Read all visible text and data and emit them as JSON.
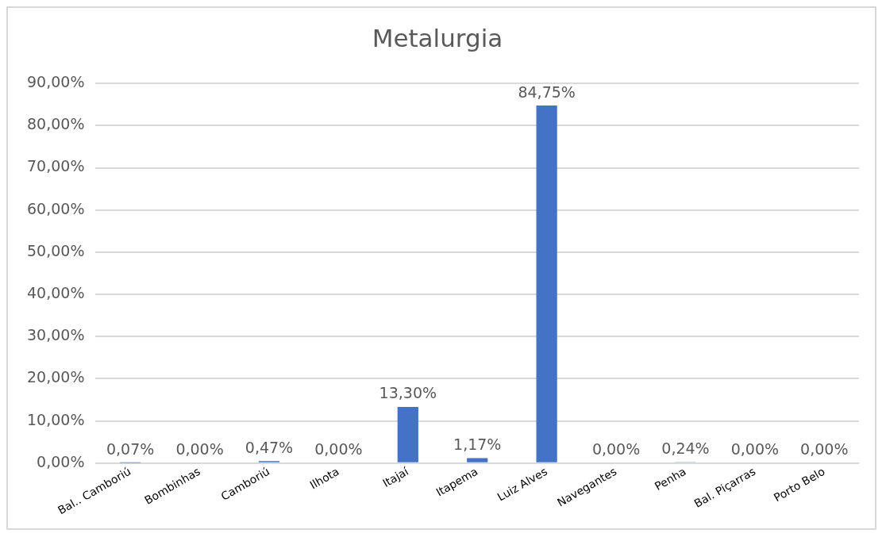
{
  "chart_data": {
    "type": "bar",
    "title": "Metalurgia",
    "categories": [
      "Bal.. Camboriú",
      "Bombinhas",
      "Camboriú",
      "Ilhota",
      "Itajaí",
      "Itapema",
      "Luiz Alves",
      "Navegantes",
      "Penha",
      "Bal. Piçarras",
      "Porto Belo"
    ],
    "values": [
      0.07,
      0,
      0.47,
      0,
      13.3,
      1.17,
      84.75,
      0,
      0.24,
      0,
      0
    ],
    "color": "#4472c4",
    "value_labels": [
      "0,07%",
      "0,00%",
      "0,47%",
      "0,00%",
      "13,30%",
      "1,17%",
      "84,75%",
      "0,00%",
      "0,24%",
      "0,00%",
      "0,00%"
    ],
    "ylim": [
      0,
      90
    ],
    "yticks": [
      {
        "value": 0,
        "label": "0,00%"
      },
      {
        "value": 10,
        "label": "10,00%"
      },
      {
        "value": 20,
        "label": "20,00%"
      },
      {
        "value": 30,
        "label": "30,00%"
      },
      {
        "value": 40,
        "label": "40,00%"
      },
      {
        "value": 50,
        "label": "50,00%"
      },
      {
        "value": 60,
        "label": "60,00%"
      },
      {
        "value": 70,
        "label": "70,00%"
      },
      {
        "value": 80,
        "label": "80,00%"
      },
      {
        "value": 90,
        "label": "90,00%"
      }
    ],
    "grid": "y",
    "legend": false
  }
}
